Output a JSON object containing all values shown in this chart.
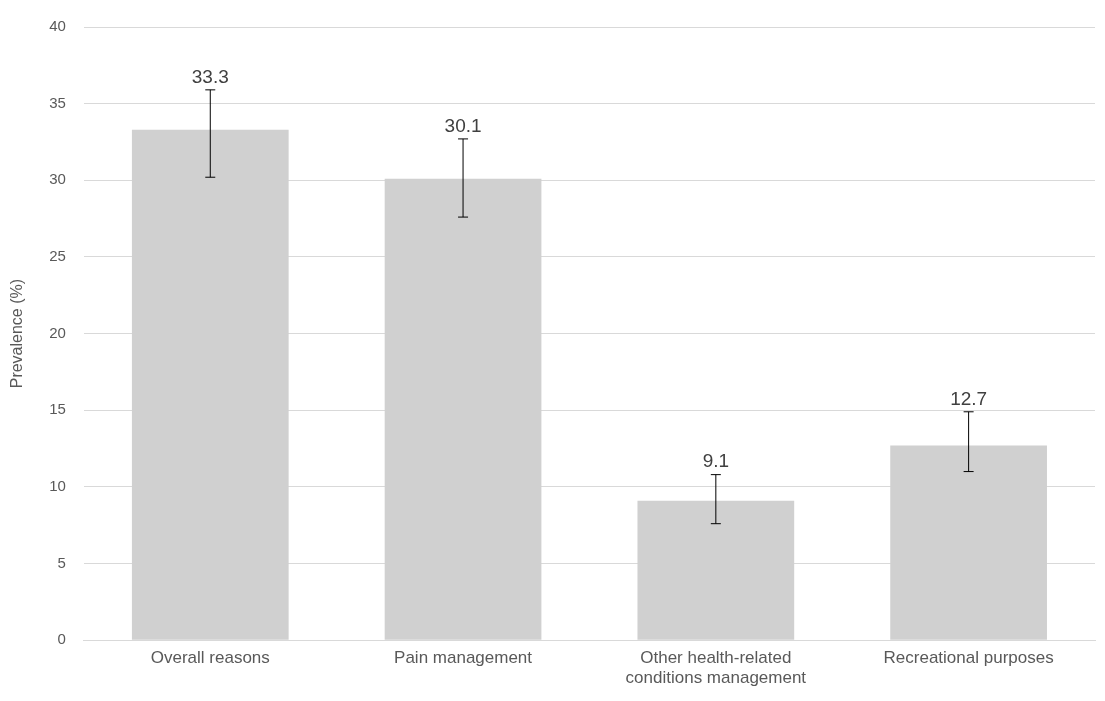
{
  "chart_data": {
    "type": "bar",
    "ylabel": "Prevalence (%)",
    "categories": [
      "Overall reasons",
      "Pain management",
      "Other health-related conditions management",
      "Recreational purposes"
    ],
    "values": [
      33.3,
      30.1,
      9.1,
      12.7
    ],
    "errors": [
      [
        30.2,
        35.9
      ],
      [
        27.6,
        32.7
      ],
      [
        7.6,
        10.8
      ],
      [
        11.0,
        14.9
      ]
    ],
    "color": "#d0d0d0",
    "ylim": [
      0,
      40
    ],
    "yticks": [
      0,
      5,
      10,
      15,
      20,
      25,
      30,
      35,
      40
    ],
    "grid": "y",
    "data_labels": true,
    "legend": false
  }
}
